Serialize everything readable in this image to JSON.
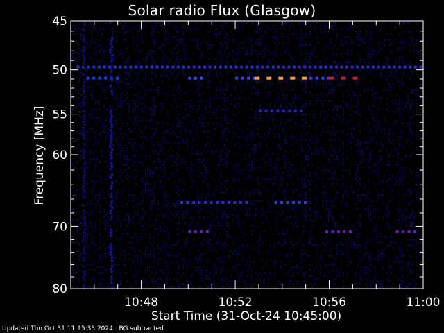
{
  "chart_data": {
    "type": "heatmap",
    "title": "Solar radio Flux (Glasgow)",
    "xlabel": "Start Time (31-Oct-24 10:45:00)",
    "ylabel": "Frequency [MHz]",
    "xlim": [
      "10:45:00",
      "11:00:00"
    ],
    "ylim": [
      80,
      45
    ],
    "x_tick_labels": [
      "10:48",
      "10:52",
      "10:56",
      "11:00"
    ],
    "x_tick_values_min": [
      3,
      7,
      11,
      15
    ],
    "y_tick_labels": [
      "45",
      "50",
      "55",
      "60",
      "70",
      "80"
    ],
    "y_tick_values": [
      45,
      50,
      55,
      60,
      70,
      80
    ],
    "background_color": "#000000",
    "axis_color": "#ffffff",
    "features": [
      {
        "kind": "dotted-band",
        "freq": 49.7,
        "start": "10:45:15",
        "end": "10:59:55",
        "level": "low",
        "color": "#2a2ad8"
      },
      {
        "kind": "dotted-band",
        "freq": 50.9,
        "start": "10:45:40",
        "end": "10:47:00",
        "level": "medium",
        "color": "#1a3aff"
      },
      {
        "kind": "dotted-band",
        "freq": 50.9,
        "start": "10:50:00",
        "end": "10:50:45",
        "level": "medium",
        "color": "#2a4aff"
      },
      {
        "kind": "dotted-band",
        "freq": 50.9,
        "start": "10:52:00",
        "end": "10:52:50",
        "level": "medium",
        "color": "#3a3aff"
      },
      {
        "kind": "dotted-band",
        "freq": 50.9,
        "start": "10:52:50",
        "end": "10:55:10",
        "level": "high",
        "color": "#ff9a40"
      },
      {
        "kind": "dotted-band",
        "freq": 50.9,
        "start": "10:55:10",
        "end": "10:56:00",
        "level": "medium",
        "color": "#3a3aff"
      },
      {
        "kind": "dotted-band",
        "freq": 50.9,
        "start": "10:56:00",
        "end": "10:57:20",
        "level": "high",
        "color": "#d01828"
      },
      {
        "kind": "dotted-band",
        "freq": 54.6,
        "start": "10:53:00",
        "end": "10:55:00",
        "level": "low",
        "color": "#2222cc"
      },
      {
        "kind": "dotted-band",
        "freq": 66.5,
        "start": "10:49:40",
        "end": "10:52:40",
        "level": "low",
        "color": "#2233bb"
      },
      {
        "kind": "dotted-band",
        "freq": 66.5,
        "start": "10:53:40",
        "end": "10:55:00",
        "level": "low",
        "color": "#2244cc"
      },
      {
        "kind": "dotted-band",
        "freq": 70.8,
        "start": "10:50:00",
        "end": "10:50:50",
        "level": "medium",
        "color": "#6a18c8"
      },
      {
        "kind": "dotted-band",
        "freq": 70.8,
        "start": "10:55:50",
        "end": "10:57:00",
        "level": "medium",
        "color": "#6a18c8"
      },
      {
        "kind": "dotted-band",
        "freq": 70.8,
        "start": "10:58:50",
        "end": "10:59:40",
        "level": "medium",
        "color": "#6a18c8"
      },
      {
        "kind": "vertical-streak",
        "time": "10:46:40",
        "freq_range": [
          45,
          80
        ],
        "level": "low",
        "color": "#1a1a8a"
      },
      {
        "kind": "vertical-streak",
        "time": "10:45:30",
        "freq_range": [
          45,
          80
        ],
        "level": "low",
        "color": "#101060"
      }
    ]
  },
  "footer": {
    "updated": "Updated Thu Oct 31 11:15:33 2024",
    "note": "BG subtracted"
  }
}
